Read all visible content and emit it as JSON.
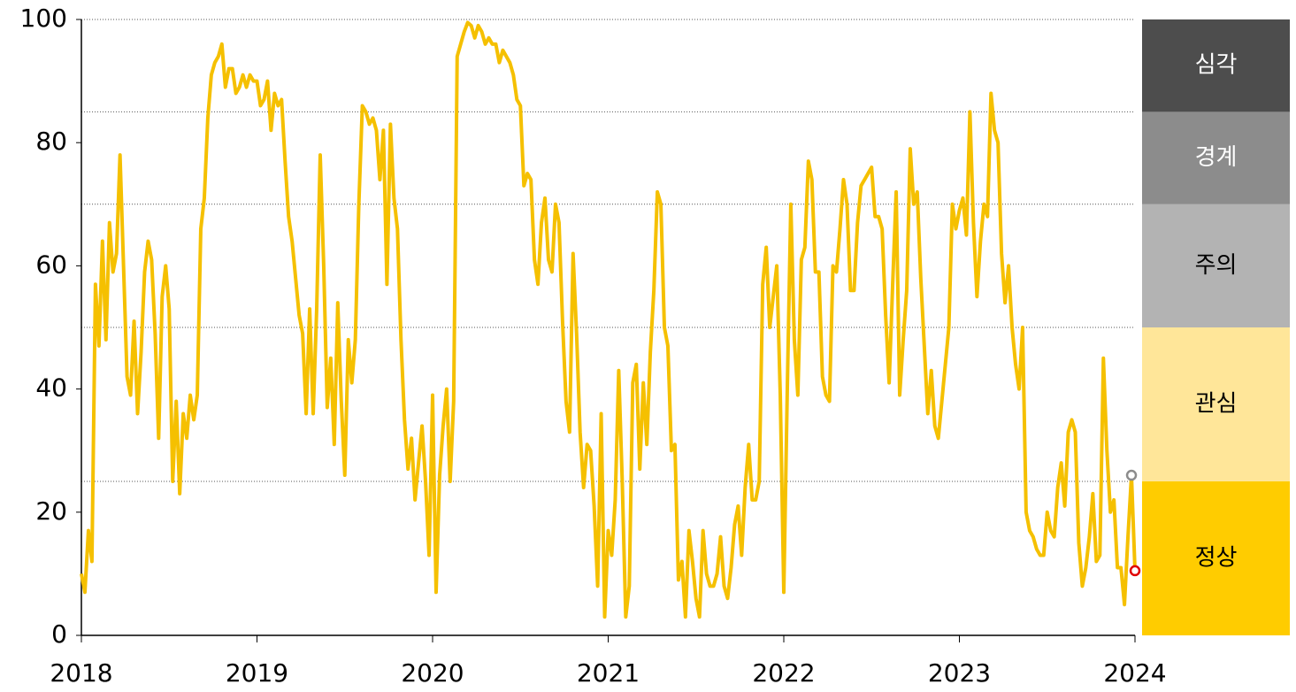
{
  "chart_data": {
    "type": "line",
    "color": "#f5c000",
    "xlim": [
      2018,
      2024
    ],
    "xticks": [
      2018,
      2019,
      2020,
      2021,
      2022,
      2023,
      2024
    ],
    "ylim": [
      0,
      100
    ],
    "yticks": [
      0,
      20,
      40,
      60,
      80,
      100
    ],
    "x": [
      2018,
      2018.02,
      2018.04,
      2018.06,
      2018.08,
      2018.1,
      2018.12,
      2018.14,
      2018.16,
      2018.18,
      2018.2,
      2018.22,
      2018.24,
      2018.26,
      2018.28,
      2018.3,
      2018.32,
      2018.34,
      2018.36,
      2018.38,
      2018.4,
      2018.42,
      2018.44,
      2018.46,
      2018.48,
      2018.5,
      2018.52,
      2018.54,
      2018.56,
      2018.58,
      2018.6,
      2018.62,
      2018.64,
      2018.66,
      2018.68,
      2018.7,
      2018.72,
      2018.74,
      2018.76,
      2018.78,
      2018.8,
      2018.82,
      2018.84,
      2018.86,
      2018.88,
      2018.9,
      2018.92,
      2018.94,
      2018.96,
      2018.98,
      2019,
      2019.02,
      2019.04,
      2019.06,
      2019.08,
      2019.1,
      2019.12,
      2019.14,
      2019.16,
      2019.18,
      2019.2,
      2019.22,
      2019.24,
      2019.26,
      2019.28,
      2019.3,
      2019.32,
      2019.34,
      2019.36,
      2019.38,
      2019.4,
      2019.42,
      2019.44,
      2019.46,
      2019.48,
      2019.5,
      2019.52,
      2019.54,
      2019.56,
      2019.58,
      2019.6,
      2019.62,
      2019.64,
      2019.66,
      2019.68,
      2019.7,
      2019.72,
      2019.74,
      2019.76,
      2019.78,
      2019.8,
      2019.82,
      2019.84,
      2019.86,
      2019.88,
      2019.9,
      2019.92,
      2019.94,
      2019.96,
      2019.98,
      2020,
      2020.02,
      2020.04,
      2020.06,
      2020.08,
      2020.1,
      2020.12,
      2020.14,
      2020.16,
      2020.18,
      2020.2,
      2020.22,
      2020.24,
      2020.26,
      2020.28,
      2020.3,
      2020.32,
      2020.34,
      2020.36,
      2020.38,
      2020.4,
      2020.42,
      2020.44,
      2020.46,
      2020.48,
      2020.5,
      2020.52,
      2020.54,
      2020.56,
      2020.58,
      2020.6,
      2020.62,
      2020.64,
      2020.66,
      2020.68,
      2020.7,
      2020.72,
      2020.74,
      2020.76,
      2020.78,
      2020.8,
      2020.82,
      2020.84,
      2020.86,
      2020.88,
      2020.9,
      2020.92,
      2020.94,
      2020.96,
      2020.98,
      2021,
      2021.02,
      2021.04,
      2021.06,
      2021.08,
      2021.1,
      2021.12,
      2021.14,
      2021.16,
      2021.18,
      2021.2,
      2021.22,
      2021.24,
      2021.26,
      2021.28,
      2021.3,
      2021.32,
      2021.34,
      2021.36,
      2021.38,
      2021.4,
      2021.42,
      2021.44,
      2021.46,
      2021.48,
      2021.5,
      2021.52,
      2021.54,
      2021.56,
      2021.58,
      2021.6,
      2021.62,
      2021.64,
      2021.66,
      2021.68,
      2021.7,
      2021.72,
      2021.74,
      2021.76,
      2021.78,
      2021.8,
      2021.82,
      2021.84,
      2021.86,
      2021.88,
      2021.9,
      2021.92,
      2021.94,
      2021.96,
      2021.98,
      2022,
      2022.02,
      2022.04,
      2022.06,
      2022.08,
      2022.1,
      2022.12,
      2022.14,
      2022.16,
      2022.18,
      2022.2,
      2022.22,
      2022.24,
      2022.26,
      2022.28,
      2022.3,
      2022.32,
      2022.34,
      2022.36,
      2022.38,
      2022.4,
      2022.42,
      2022.44,
      2022.46,
      2022.48,
      2022.5,
      2022.52,
      2022.54,
      2022.56,
      2022.58,
      2022.6,
      2022.62,
      2022.64,
      2022.66,
      2022.68,
      2022.7,
      2022.72,
      2022.74,
      2022.76,
      2022.78,
      2022.8,
      2022.82,
      2022.84,
      2022.86,
      2022.88,
      2022.9,
      2022.92,
      2022.94,
      2022.96,
      2022.98,
      2023,
      2023.02,
      2023.04,
      2023.06,
      2023.08,
      2023.1,
      2023.12,
      2023.14,
      2023.16,
      2023.18,
      2023.2,
      2023.22,
      2023.24,
      2023.26,
      2023.28,
      2023.3,
      2023.32,
      2023.34,
      2023.36,
      2023.38,
      2023.4,
      2023.42,
      2023.44,
      2023.46,
      2023.48,
      2023.5,
      2023.52,
      2023.54,
      2023.56,
      2023.58,
      2023.6,
      2023.62,
      2023.64,
      2023.66,
      2023.68,
      2023.7,
      2023.72,
      2023.74,
      2023.76,
      2023.78,
      2023.8,
      2023.82,
      2023.84,
      2023.86,
      2023.88,
      2023.9,
      2023.92,
      2023.94,
      2023.96,
      2023.98,
      2024
    ],
    "values": [
      10,
      7,
      17,
      12,
      57,
      47,
      64,
      48,
      67,
      59,
      62,
      78,
      60,
      42,
      39,
      51,
      36,
      46,
      59,
      64,
      61,
      49,
      32,
      55,
      60,
      53,
      25,
      38,
      23,
      36,
      32,
      39,
      35,
      39,
      66,
      71,
      84,
      91,
      93,
      94,
      96,
      89,
      92,
      92,
      88,
      89,
      91,
      89,
      91,
      90,
      90,
      86,
      87,
      90,
      82,
      88,
      86,
      87,
      77,
      68,
      64,
      58,
      52,
      49,
      36,
      53,
      36,
      53,
      78,
      60,
      37,
      45,
      31,
      54,
      38,
      26,
      48,
      41,
      48,
      70,
      86,
      85,
      83,
      84,
      82,
      74,
      82,
      57,
      83,
      71,
      66,
      48,
      35,
      27,
      32,
      22,
      28,
      34,
      25,
      13,
      39,
      7,
      26,
      34,
      40,
      25,
      38,
      94,
      96,
      98,
      99.5,
      99,
      97,
      99,
      98,
      96,
      97,
      96,
      96,
      93,
      95,
      94,
      93,
      91,
      87,
      86,
      73,
      75,
      74,
      61,
      57,
      67,
      71,
      61,
      59,
      70,
      67,
      51,
      38,
      33,
      62,
      49,
      33,
      24,
      31,
      30,
      21,
      8,
      36,
      3,
      17,
      13,
      22,
      43,
      25,
      3,
      8,
      41,
      44,
      27,
      41,
      31,
      46,
      56,
      72,
      70,
      50,
      47,
      30,
      31,
      9,
      12,
      3,
      17,
      12,
      6,
      3,
      17,
      10,
      8,
      8,
      10,
      16,
      8,
      6,
      11,
      18,
      21,
      13,
      24,
      31,
      22,
      22,
      25,
      57,
      63,
      50,
      55,
      60,
      39,
      7,
      40,
      70,
      48,
      39,
      61,
      63,
      77,
      74,
      59,
      59,
      42,
      39,
      38,
      60,
      59,
      66,
      74,
      70,
      56,
      56,
      67,
      73,
      74,
      75,
      76,
      68,
      68,
      66,
      52,
      41,
      57,
      72,
      39,
      48,
      56,
      79,
      70,
      72,
      58,
      47,
      36,
      43,
      34,
      32,
      38,
      44,
      50,
      70,
      66,
      69,
      71,
      65,
      85,
      67,
      55,
      64,
      70,
      68,
      88,
      82,
      80,
      62,
      54,
      60,
      50,
      44,
      40,
      50,
      20,
      17,
      16,
      14,
      13,
      13,
      20,
      17,
      16,
      24,
      28,
      21,
      33,
      35,
      33,
      15,
      8,
      11,
      16,
      23,
      12,
      13,
      45,
      30,
      20,
      22,
      11,
      11,
      5,
      16,
      26,
      10.5
    ],
    "highlights": [
      {
        "x": 2023.98,
        "value": 26,
        "color": "#8c8c8c"
      },
      {
        "x": 2024,
        "value": 10.5,
        "color": "#e00000"
      }
    ],
    "bands": [
      {
        "name": "정상",
        "from": 0,
        "to": 25,
        "color": "#ffcc00",
        "text_color": "#000000"
      },
      {
        "name": "관심",
        "from": 25,
        "to": 50,
        "color": "#ffe699",
        "text_color": "#000000"
      },
      {
        "name": "주의",
        "from": 50,
        "to": 70,
        "color": "#b3b3b3",
        "text_color": "#000000"
      },
      {
        "name": "경계",
        "from": 70,
        "to": 85,
        "color": "#8c8c8c",
        "text_color": "#ffffff"
      },
      {
        "name": "심각",
        "from": 85,
        "to": 100,
        "color": "#4d4d4d",
        "text_color": "#ffffff"
      }
    ]
  }
}
